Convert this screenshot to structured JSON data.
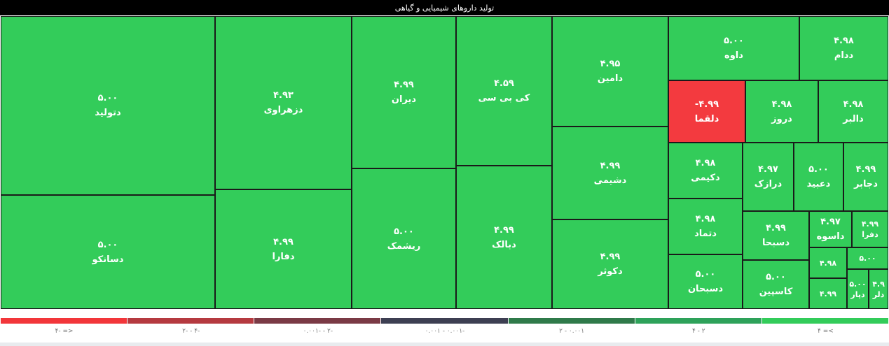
{
  "chart_data": {
    "type": "treemap",
    "title": "تولید داروهای شیمیایی و گیاهی",
    "categories": [
      "دتولید",
      "دسانکو",
      "دزهراوی",
      "دفارا",
      "دیران",
      "ریشمک",
      "کی بی سی",
      "دبالک",
      "دامین",
      "دشیمی",
      "دکوثر",
      "داوه",
      "ددام",
      "دلقما",
      "دروز",
      "دالبر",
      "دکیمی",
      "دتماد",
      "دسبحان",
      "درازک",
      "دعبید",
      "دجابر",
      "دسبحا",
      "کاسپین",
      "داسوه",
      "دفرا",
      null,
      null,
      null,
      "دپار",
      "دلر"
    ],
    "values": [
      5.0,
      5.0,
      4.93,
      4.99,
      4.99,
      5.0,
      4.59,
      4.99,
      4.95,
      4.99,
      4.99,
      5.0,
      4.98,
      -4.99,
      4.98,
      4.98,
      4.98,
      4.98,
      5.0,
      4.97,
      5.0,
      4.99,
      4.99,
      5.0,
      4.97,
      4.99,
      4.98,
      4.99,
      5.0,
      5.0,
      4.9
    ],
    "value_labels": [
      "۵.۰۰",
      "۵.۰۰",
      "۴.۹۳",
      "۴.۹۹",
      "۴.۹۹",
      "۵.۰۰",
      "۴.۵۹",
      "۴.۹۹",
      "۴.۹۵",
      "۴.۹۹",
      "۴.۹۹",
      "۵.۰۰",
      "۴.۹۸",
      "-۴.۹۹",
      "۴.۹۸",
      "۴.۹۸",
      "۴.۹۸",
      "۴.۹۸",
      "۵.۰۰",
      "۴.۹۷",
      "۵.۰۰",
      "۴.۹۹",
      "۴.۹۹",
      "۵.۰۰",
      "۴.۹۷",
      "۴.۹۹",
      "۴.۹۸",
      "۴.۹۹",
      "۵.۰۰",
      "۵.۰۰",
      "۴.۹"
    ],
    "color": "#33cc5a",
    "negative_color": "#f33a3f",
    "legend": [
      {
        "label": "۴- =>",
        "color": "#f2363a"
      },
      {
        "label": "۲- - ۴-",
        "color": "#b53a40"
      },
      {
        "label": "۰.۰۰۱- - ۲-",
        "color": "#7a3a45"
      },
      {
        "label": "۰.۰۰۱ - ۰.۰۰۱-",
        "color": "#3d3f52"
      },
      {
        "label": "۲ - ۰.۰۰۱",
        "color": "#2f7a4a"
      },
      {
        "label": "۴ - ۲",
        "color": "#2ea25a"
      },
      {
        "label": "۴ =<",
        "color": "#33cc5a"
      }
    ]
  }
}
